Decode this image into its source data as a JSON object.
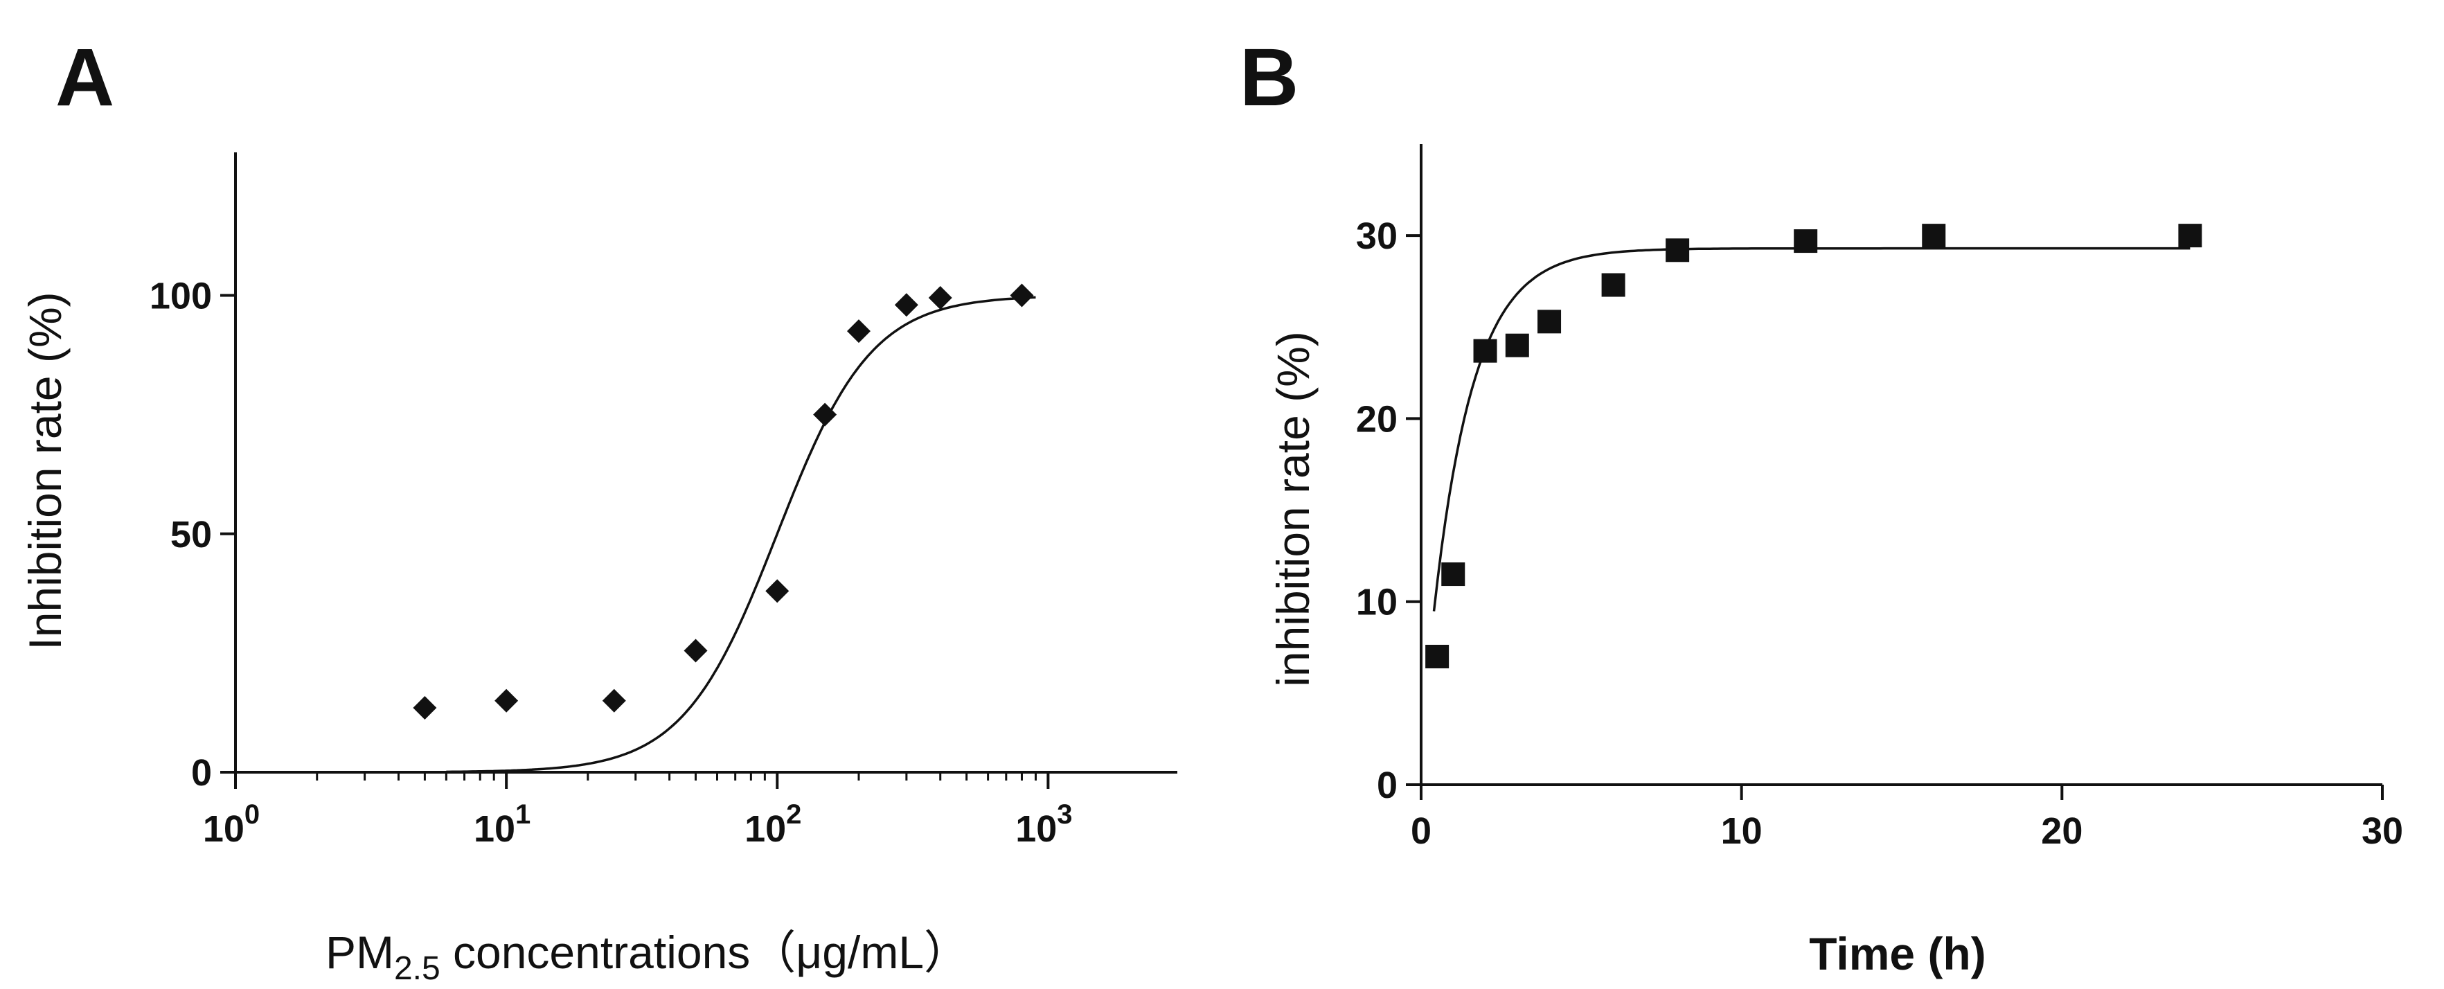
{
  "chart_data": [
    {
      "panel_label": "A",
      "type": "scatter",
      "xscale": "log",
      "xlim": [
        1,
        3000
      ],
      "ylim": [
        0,
        130
      ],
      "xticks": [
        {
          "value": 1,
          "base": "10",
          "exp": "0"
        },
        {
          "value": 10,
          "base": "10",
          "exp": "1"
        },
        {
          "value": 100,
          "base": "10",
          "exp": "2"
        },
        {
          "value": 1000,
          "base": "10",
          "exp": "3"
        }
      ],
      "yticks": [
        {
          "value": 0,
          "label": "0"
        },
        {
          "value": 50,
          "label": "50"
        },
        {
          "value": 100,
          "label": "100"
        }
      ],
      "ylabel": "Inhibition rate (%)",
      "xlabel": {
        "prefix": "PM",
        "subscript": "2.5",
        "suffix": " concentrations（μg/mL）"
      },
      "marker": "diamond",
      "points": [
        {
          "x": 5,
          "y": 13.5
        },
        {
          "x": 10,
          "y": 15
        },
        {
          "x": 25,
          "y": 15
        },
        {
          "x": 50,
          "y": 25.5
        },
        {
          "x": 100,
          "y": 38
        },
        {
          "x": 150,
          "y": 75
        },
        {
          "x": 200,
          "y": 92.5
        },
        {
          "x": 300,
          "y": 98
        },
        {
          "x": 400,
          "y": 99.5
        },
        {
          "x": 800,
          "y": 100
        }
      ],
      "fit": {
        "model": "sigmoid",
        "bottom": 0,
        "top": 100,
        "ec50": 100,
        "hill": 2.5,
        "x_from": 6,
        "x_to": 900
      }
    },
    {
      "panel_label": "B",
      "type": "scatter",
      "xlim": [
        0,
        30
      ],
      "ylim": [
        0,
        35
      ],
      "xticks": [
        {
          "value": 0,
          "label": "0"
        },
        {
          "value": 10,
          "label": "10"
        },
        {
          "value": 20,
          "label": "20"
        },
        {
          "value": 30,
          "label": "30"
        }
      ],
      "yticks": [
        {
          "value": 0,
          "label": "0"
        },
        {
          "value": 10,
          "label": "10"
        },
        {
          "value": 20,
          "label": "20"
        },
        {
          "value": 30,
          "label": "30"
        }
      ],
      "ylabel": "inhibition rate (%)",
      "xlabel": "Time (h)",
      "marker": "square",
      "points": [
        {
          "x": 0.5,
          "y": 7
        },
        {
          "x": 1,
          "y": 11.5
        },
        {
          "x": 2,
          "y": 23.7
        },
        {
          "x": 3,
          "y": 24
        },
        {
          "x": 4,
          "y": 25.3
        },
        {
          "x": 6,
          "y": 27.3
        },
        {
          "x": 8,
          "y": 29.2
        },
        {
          "x": 12,
          "y": 29.7
        },
        {
          "x": 16,
          "y": 30
        },
        {
          "x": 24,
          "y": 30
        }
      ],
      "fit": {
        "model": "exponential",
        "y0": 2,
        "plateau": 29.3,
        "k": 0.8,
        "x_from": 0.4,
        "x_to": 24
      }
    }
  ]
}
